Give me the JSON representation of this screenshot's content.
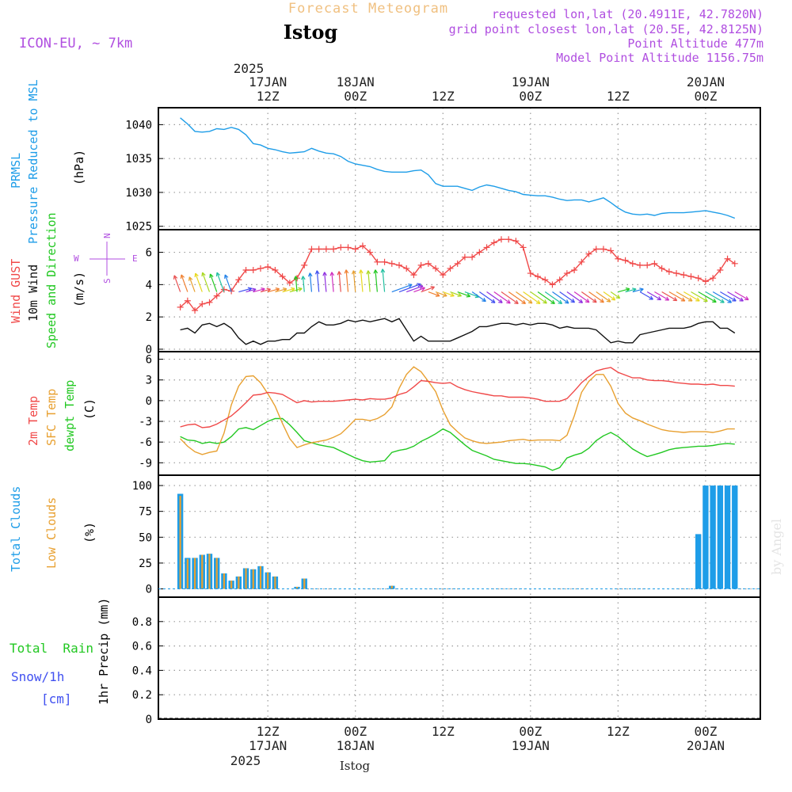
{
  "header": {
    "product": "Forecast Meteogram",
    "location": "Istog",
    "model": "ICON-EU, ~ 7km",
    "requested": "requested lon,lat (20.4911E, 42.7820N)",
    "grid_point": "grid point closest lon,lat (20.5E, 42.8125N)",
    "point_altitude": "Point Altitude 477m",
    "model_altitude": "Model Point Altitude 1156.75m",
    "footer_location": "Istog",
    "watermark": "by Angel"
  },
  "time_axis": {
    "top_year": "2025",
    "bottom_year": "2025",
    "ticks": [
      {
        "hour": 12,
        "top": "17JAN",
        "bottom": "17JAN",
        "z": "12Z"
      },
      {
        "hour": 24,
        "top": "18JAN",
        "bottom": "18JAN",
        "z": "00Z"
      },
      {
        "hour": 36,
        "top": "",
        "bottom": "",
        "z": "12Z"
      },
      {
        "hour": 48,
        "top": "19JAN",
        "bottom": "19JAN",
        "z": "00Z"
      },
      {
        "hour": 60,
        "top": "",
        "bottom": "",
        "z": "12Z"
      },
      {
        "hour": 72,
        "top": "20JAN",
        "bottom": "20JAN",
        "z": "00Z"
      }
    ]
  },
  "colors": {
    "prmsl": "#1e9de8",
    "gust": "#f04848",
    "wind": "#111111",
    "t2m": "#f04848",
    "sfc": "#e8a030",
    "dewpt": "#22c822",
    "total_clouds": "#1e9de8",
    "low_clouds": "#e8a030",
    "rain": "#22c822",
    "snow": "#4050f0",
    "purple": "#b04ee0"
  },
  "panels": {
    "pressure": {
      "label1": "PRMSL",
      "label2": "Pressure Reduced to MSL",
      "unit": "(hPa)"
    },
    "wind": {
      "gust_label": "Wind GUST",
      "wind_label": "10m Wind",
      "dir_label": "Speed and Direction",
      "unit": "(m/s)",
      "compass": {
        "n": "N",
        "s": "S",
        "e": "E",
        "w": "W"
      }
    },
    "temp": {
      "t2m_label": "2m Temp",
      "sfc_label": "SFC Temp",
      "dewpt_label": "dewpt Temp",
      "unit": "(C)"
    },
    "clouds": {
      "total_label": "Total Clouds",
      "low_label": "Low Clouds",
      "unit": "(%)"
    },
    "precip": {
      "rain_label": "Total  Rain",
      "snow_label": "Snow/1h",
      "snow_unit": "[cm]",
      "axis_label": "1hr Precip (mm)"
    }
  },
  "chart_data": [
    {
      "type": "line",
      "title": "PRMSL Pressure Reduced to MSL",
      "ylabel": "(hPa)",
      "x_hours": [
        0,
        1,
        2,
        3,
        4,
        5,
        6,
        7,
        8,
        9,
        10,
        11,
        12,
        13,
        14,
        15,
        16,
        17,
        18,
        19,
        20,
        21,
        22,
        23,
        24,
        25,
        26,
        27,
        28,
        29,
        30,
        31,
        32,
        33,
        34,
        35,
        36,
        37,
        38,
        39,
        40,
        41,
        42,
        43,
        44,
        45,
        46,
        47,
        48,
        49,
        50,
        51,
        52,
        53,
        54,
        55,
        56,
        57,
        58,
        59,
        60,
        61,
        62,
        63,
        64,
        65,
        66,
        67,
        68,
        69,
        70,
        71,
        72,
        73,
        74,
        75,
        76
      ],
      "series": [
        {
          "name": "PRMSL",
          "values": [
            1041,
            1040.1,
            1039,
            1038.9,
            1039,
            1039.4,
            1039.3,
            1039.6,
            1039.3,
            1038.5,
            1037.2,
            1037,
            1036.5,
            1036.3,
            1036,
            1035.8,
            1035.9,
            1036,
            1036.5,
            1036.1,
            1035.8,
            1035.7,
            1035.3,
            1034.6,
            1034.2,
            1034,
            1033.8,
            1033.4,
            1033.1,
            1033,
            1033,
            1033,
            1033.2,
            1033.3,
            1032.6,
            1031.3,
            1030.9,
            1030.9,
            1030.9,
            1030.6,
            1030.3,
            1030.8,
            1031.1,
            1030.9,
            1030.6,
            1030.3,
            1030.1,
            1029.7,
            1029.6,
            1029.5,
            1029.5,
            1029.3,
            1029,
            1028.8,
            1028.9,
            1028.9,
            1028.6,
            1028.9,
            1029.2,
            1028.5,
            1027.7,
            1027.1,
            1026.8,
            1026.7,
            1026.8,
            1026.6,
            1026.9,
            1027,
            1027,
            1027,
            1027.1,
            1027.2,
            1027.3,
            1027.1,
            1026.9,
            1026.6,
            1026.2
          ]
        }
      ],
      "ylim": [
        1024.5,
        1042.5
      ],
      "yticks": [
        1025,
        1030,
        1035,
        1040
      ]
    },
    {
      "type": "line",
      "title": "Wind GUST / 10m Wind Speed and Direction",
      "ylabel": "(m/s)",
      "x_hours": [
        0,
        1,
        2,
        3,
        4,
        5,
        6,
        7,
        8,
        9,
        10,
        11,
        12,
        13,
        14,
        15,
        16,
        17,
        18,
        19,
        20,
        21,
        22,
        23,
        24,
        25,
        26,
        27,
        28,
        29,
        30,
        31,
        32,
        33,
        34,
        35,
        36,
        37,
        38,
        39,
        40,
        41,
        42,
        43,
        44,
        45,
        46,
        47,
        48,
        49,
        50,
        51,
        52,
        53,
        54,
        55,
        56,
        57,
        58,
        59,
        60,
        61,
        62,
        63,
        64,
        65,
        66,
        67,
        68,
        69,
        70,
        71,
        72,
        73,
        74,
        75,
        76
      ],
      "series": [
        {
          "name": "Wind GUST",
          "values": [
            2.6,
            3.0,
            2.4,
            2.8,
            2.9,
            3.3,
            3.7,
            3.6,
            4.3,
            4.9,
            4.9,
            5.0,
            5.1,
            4.9,
            4.5,
            4.1,
            4.4,
            5.2,
            6.2,
            6.2,
            6.2,
            6.2,
            6.3,
            6.3,
            6.2,
            6.4,
            6.0,
            5.4,
            5.4,
            5.3,
            5.2,
            5.0,
            4.6,
            5.2,
            5.3,
            5.0,
            4.6,
            5.0,
            5.3,
            5.7,
            5.7,
            6.0,
            6.3,
            6.6,
            6.8,
            6.8,
            6.7,
            6.3,
            4.7,
            4.5,
            4.3,
            4.0,
            4.3,
            4.7,
            4.9,
            5.4,
            5.9,
            6.2,
            6.2,
            6.1,
            5.6,
            5.5,
            5.3,
            5.2,
            5.2,
            5.3,
            5.0,
            4.8,
            4.7,
            4.6,
            4.5,
            4.4,
            4.2,
            4.4,
            4.9,
            5.6,
            5.3
          ]
        },
        {
          "name": "10m Wind",
          "values": [
            1.2,
            1.3,
            1.0,
            1.5,
            1.6,
            1.4,
            1.6,
            1.3,
            0.7,
            0.3,
            0.5,
            0.3,
            0.5,
            0.5,
            0.6,
            0.6,
            1.0,
            1.0,
            1.4,
            1.7,
            1.5,
            1.5,
            1.6,
            1.8,
            1.7,
            1.8,
            1.7,
            1.8,
            1.9,
            1.7,
            1.9,
            1.2,
            0.5,
            0.8,
            0.5,
            0.5,
            0.5,
            0.5,
            0.7,
            0.9,
            1.1,
            1.4,
            1.4,
            1.5,
            1.6,
            1.6,
            1.5,
            1.6,
            1.5,
            1.6,
            1.6,
            1.5,
            1.3,
            1.4,
            1.3,
            1.3,
            1.3,
            1.2,
            0.8,
            0.4,
            0.5,
            0.4,
            0.4,
            0.9,
            1.0,
            1.1,
            1.2,
            1.3,
            1.3,
            1.3,
            1.4,
            1.6,
            1.7,
            1.7,
            1.3,
            1.3,
            1.0
          ]
        }
      ],
      "ylim": [
        -0.15,
        7.4
      ],
      "yticks": [
        0,
        2,
        4,
        6
      ]
    },
    {
      "type": "line",
      "title": "2m Temp / SFC Temp / dewpt Temp",
      "ylabel": "(C)",
      "x_hours": [
        0,
        1,
        2,
        3,
        4,
        5,
        6,
        7,
        8,
        9,
        10,
        11,
        12,
        13,
        14,
        15,
        16,
        17,
        18,
        19,
        20,
        21,
        22,
        23,
        24,
        25,
        26,
        27,
        28,
        29,
        30,
        31,
        32,
        33,
        34,
        35,
        36,
        37,
        38,
        39,
        40,
        41,
        42,
        43,
        44,
        45,
        46,
        47,
        48,
        49,
        50,
        51,
        52,
        53,
        54,
        55,
        56,
        57,
        58,
        59,
        60,
        61,
        62,
        63,
        64,
        65,
        66,
        67,
        68,
        69,
        70,
        71,
        72,
        73,
        74,
        75,
        76
      ],
      "series": [
        {
          "name": "2m Temp",
          "values": [
            -3.8,
            -3.5,
            -3.4,
            -3.9,
            -3.8,
            -3.4,
            -2.8,
            -2.2,
            -1.3,
            -0.3,
            0.8,
            0.9,
            1.2,
            1.1,
            0.9,
            0.3,
            -0.3,
            0.0,
            -0.2,
            -0.1,
            -0.1,
            -0.1,
            0.0,
            0.1,
            0.2,
            0.1,
            0.3,
            0.2,
            0.2,
            0.4,
            0.9,
            1.2,
            2.0,
            2.9,
            2.8,
            2.6,
            2.5,
            2.6,
            2.0,
            1.6,
            1.3,
            1.1,
            0.9,
            0.7,
            0.7,
            0.5,
            0.5,
            0.5,
            0.4,
            0.2,
            -0.1,
            -0.1,
            -0.1,
            0.3,
            1.4,
            2.6,
            3.5,
            4.3,
            4.6,
            4.8,
            4.1,
            3.7,
            3.3,
            3.3,
            3.0,
            2.9,
            2.9,
            2.8,
            2.6,
            2.5,
            2.4,
            2.4,
            2.3,
            2.4,
            2.2,
            2.2,
            2.1
          ]
        },
        {
          "name": "SFC Temp",
          "values": [
            -5.5,
            -6.6,
            -7.4,
            -7.8,
            -7.5,
            -7.3,
            -4.7,
            -0.6,
            2.1,
            3.5,
            3.6,
            2.6,
            1.0,
            -0.8,
            -3.3,
            -5.5,
            -6.8,
            -6.4,
            -6.1,
            -5.9,
            -5.7,
            -5.3,
            -4.8,
            -3.8,
            -2.7,
            -2.7,
            -2.9,
            -2.6,
            -2.0,
            -0.9,
            1.8,
            3.8,
            4.9,
            4.2,
            2.8,
            1.3,
            -1.4,
            -3.5,
            -4.5,
            -5.4,
            -5.8,
            -6.1,
            -6.2,
            -6.1,
            -6.0,
            -5.8,
            -5.7,
            -5.6,
            -5.8,
            -5.7,
            -5.7,
            -5.7,
            -5.8,
            -5.0,
            -2.2,
            1.2,
            2.8,
            3.8,
            3.8,
            2.1,
            -0.4,
            -1.8,
            -2.5,
            -2.9,
            -3.4,
            -3.8,
            -4.2,
            -4.4,
            -4.5,
            -4.6,
            -4.5,
            -4.5,
            -4.5,
            -4.6,
            -4.4,
            -4.1,
            -4.1
          ]
        },
        {
          "name": "dewpt Temp",
          "values": [
            -5.2,
            -5.7,
            -5.8,
            -6.2,
            -6.0,
            -6.2,
            -6.0,
            -5.2,
            -4.1,
            -3.9,
            -4.2,
            -3.6,
            -3.0,
            -2.6,
            -2.6,
            -3.5,
            -4.6,
            -5.8,
            -6.1,
            -6.4,
            -6.6,
            -6.8,
            -7.3,
            -7.8,
            -8.3,
            -8.7,
            -8.9,
            -8.8,
            -8.7,
            -7.5,
            -7.2,
            -7.0,
            -6.6,
            -5.9,
            -5.4,
            -4.8,
            -4.1,
            -4.6,
            -5.5,
            -6.4,
            -7.2,
            -7.6,
            -8.0,
            -8.5,
            -8.7,
            -8.9,
            -9.1,
            -9.1,
            -9.2,
            -9.4,
            -9.6,
            -10.1,
            -9.7,
            -8.3,
            -7.9,
            -7.6,
            -6.9,
            -5.8,
            -5.1,
            -4.6,
            -5.2,
            -6.1,
            -7.0,
            -7.6,
            -8.1,
            -7.8,
            -7.5,
            -7.1,
            -6.9,
            -6.8,
            -6.7,
            -6.6,
            -6.6,
            -6.5,
            -6.3,
            -6.2,
            -6.3
          ]
        }
      ],
      "ylim": [
        -10.8,
        7.1
      ],
      "yticks": [
        -9,
        -6,
        -3,
        0,
        3,
        6
      ]
    },
    {
      "type": "bar",
      "title": "Total Clouds / Low Clouds",
      "ylabel": "(%)",
      "x_hours": [
        0,
        1,
        2,
        3,
        4,
        5,
        6,
        7,
        8,
        9,
        10,
        11,
        12,
        13,
        14,
        15,
        16,
        17,
        18,
        19,
        20,
        21,
        22,
        23,
        24,
        25,
        26,
        27,
        28,
        29,
        30,
        31,
        32,
        33,
        34,
        35,
        36,
        37,
        38,
        39,
        40,
        41,
        42,
        43,
        44,
        45,
        46,
        47,
        48,
        49,
        50,
        51,
        52,
        53,
        54,
        55,
        56,
        57,
        58,
        59,
        60,
        61,
        62,
        63,
        64,
        65,
        66,
        67,
        68,
        69,
        70,
        71,
        72,
        73,
        74,
        75,
        76
      ],
      "series": [
        {
          "name": "Total Clouds",
          "values": [
            92,
            30,
            30,
            33,
            34,
            30,
            15,
            8,
            12,
            20,
            19,
            22,
            16,
            12,
            0,
            0,
            2,
            10,
            0,
            0,
            0,
            0,
            0,
            0,
            0,
            0,
            0,
            0,
            0,
            3,
            0,
            0,
            0,
            0,
            0,
            0,
            0,
            0,
            0,
            0,
            0,
            0,
            0,
            0,
            0,
            0,
            0,
            0,
            0,
            0,
            0,
            0,
            0,
            0,
            0,
            0,
            0,
            0,
            0,
            0,
            0,
            0,
            0,
            0,
            0,
            0,
            0,
            0,
            0,
            0,
            0,
            53,
            100,
            100,
            100,
            100,
            100
          ]
        },
        {
          "name": "Low Clouds",
          "values": [
            90,
            29,
            30,
            33,
            34,
            30,
            15,
            8,
            12,
            20,
            19,
            22,
            16,
            12,
            0,
            0,
            2,
            10,
            0,
            0,
            0,
            0,
            0,
            0,
            0,
            0,
            0,
            0,
            0,
            3,
            0,
            0,
            0,
            0,
            0,
            0,
            0,
            0,
            0,
            0,
            0,
            0,
            0,
            0,
            0,
            0,
            0,
            0,
            0,
            0,
            0,
            0,
            0,
            0,
            0,
            0,
            0,
            0,
            0,
            0,
            0,
            0,
            0,
            0,
            0,
            0,
            0,
            0,
            0,
            0,
            0,
            0,
            0,
            0,
            0,
            0,
            0
          ]
        }
      ],
      "ylim": [
        -8,
        110
      ],
      "yticks": [
        0,
        25,
        50,
        75,
        100
      ]
    },
    {
      "type": "bar",
      "title": "1hr Precip",
      "ylabel": "1hr Precip (mm)",
      "series": [
        {
          "name": "Total Rain",
          "values": []
        },
        {
          "name": "Snow/1h",
          "values": []
        }
      ],
      "ylim": [
        0,
        1.0
      ],
      "yticks": [
        0,
        0.2,
        0.4,
        0.6,
        0.8
      ]
    }
  ]
}
